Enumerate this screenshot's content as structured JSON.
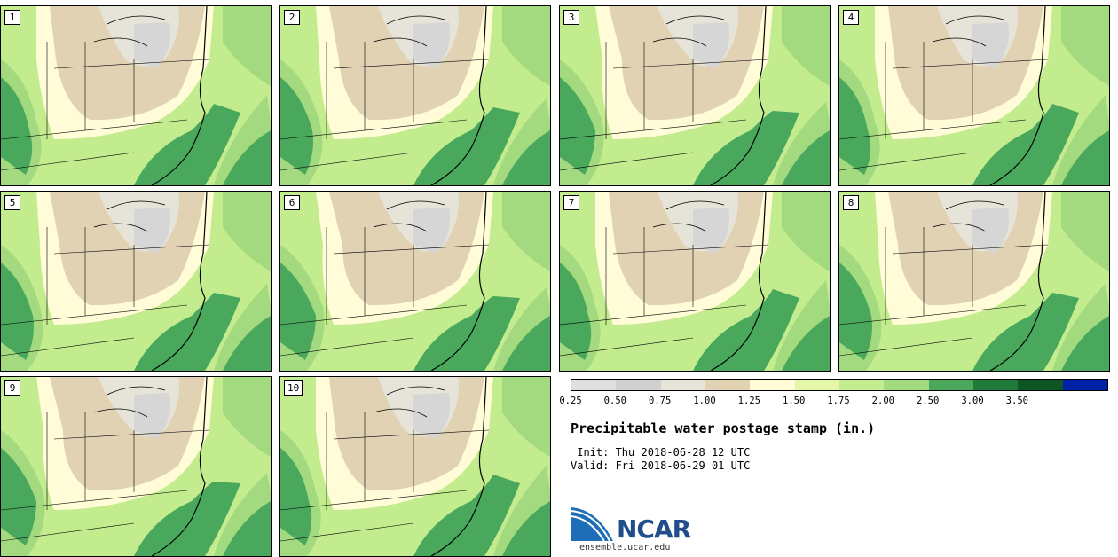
{
  "panels": [
    "1",
    "2",
    "3",
    "4",
    "5",
    "6",
    "7",
    "8",
    "9",
    "10"
  ],
  "colorbar": {
    "colors": [
      "#e0e0e0",
      "#cfcfcf",
      "#e6e3d8",
      "#e2d2b4",
      "#fffcd7",
      "#e4f7a8",
      "#c3ec8f",
      "#a3d97f",
      "#49a85c",
      "#1f7a3a",
      "#0d5525",
      "#0022a8"
    ],
    "tick_labels": [
      "0.25",
      "0.50",
      "0.75",
      "1.00",
      "1.25",
      "1.50",
      "1.75",
      "2.00",
      "2.50",
      "3.00",
      "3.50"
    ]
  },
  "title": "Precipitable water postage stamp (in.)",
  "init_line": " Init: Thu 2018-06-28 12 UTC",
  "valid_line": "Valid: Fri 2018-06-29 01 UTC",
  "logo": {
    "name": "NCAR",
    "url": "ensemble.ucar.edu"
  }
}
